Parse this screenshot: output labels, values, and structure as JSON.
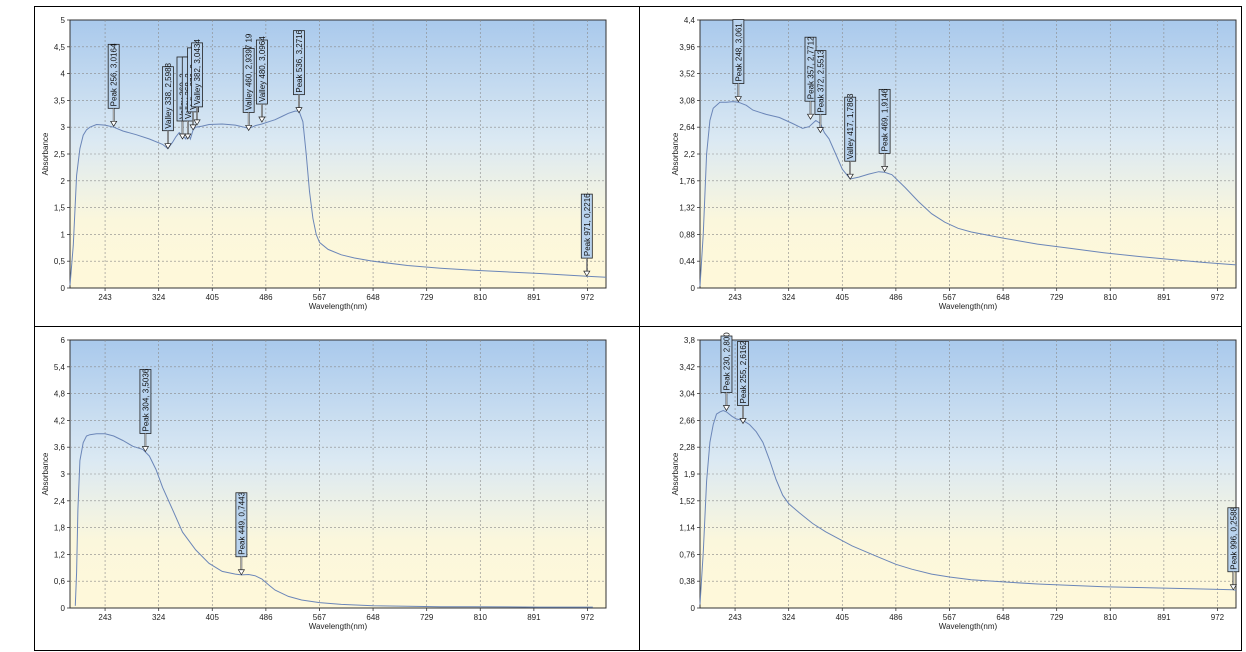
{
  "chart_data": [
    {
      "type": "line",
      "xlabel": "Wavelength(nm)",
      "ylabel": "Absorbance",
      "xticks": [
        "243",
        "324",
        "405",
        "486",
        "567",
        "648",
        "729",
        "810",
        "891",
        "972"
      ],
      "yticks": [
        "0",
        "0,5",
        "1",
        "1,5",
        "2",
        "2,5",
        "3",
        "3,5",
        "4",
        "4,5",
        "5"
      ],
      "xlim": [
        190,
        1000
      ],
      "ylim": [
        0,
        5
      ],
      "grid": true,
      "series": [
        {
          "x": [
            190,
            195,
            200,
            205,
            210,
            215,
            220,
            230,
            243,
            256,
            270,
            290,
            310,
            330,
            338,
            345,
            350,
            355,
            360,
            365,
            368,
            372,
            376,
            380,
            390,
            400,
            420,
            440,
            460,
            465,
            470,
            480,
            490,
            500,
            510,
            520,
            530,
            536,
            542,
            547,
            552,
            557,
            562,
            567,
            580,
            600,
            620,
            648,
            700,
            750,
            800,
            850,
            900,
            971,
            1000
          ],
          "y": [
            0.05,
            0.8,
            2.1,
            2.6,
            2.85,
            2.95,
            3.0,
            3.05,
            3.04,
            3.0,
            2.93,
            2.86,
            2.78,
            2.68,
            2.6,
            2.72,
            2.82,
            2.9,
            2.85,
            2.78,
            2.9,
            2.78,
            2.95,
            3.0,
            3.02,
            3.05,
            3.06,
            3.04,
            2.98,
            3.0,
            3.03,
            3.06,
            3.1,
            3.14,
            3.2,
            3.26,
            3.3,
            3.3,
            3.1,
            2.5,
            1.8,
            1.3,
            1.0,
            0.85,
            0.72,
            0.62,
            0.56,
            0.5,
            0.42,
            0.37,
            0.33,
            0.3,
            0.27,
            0.22,
            0.2
          ]
        }
      ],
      "annotations": [
        {
          "label": "Peak 256, 3,0164",
          "x": 256,
          "y": 3.0164
        },
        {
          "label": "Valley 338, 2,5988",
          "x": 338,
          "y": 2.5988
        },
        {
          "label": "Valley 360, 2,...",
          "x": 360,
          "y": 2.78
        },
        {
          "label": "Valley 368, 2,...",
          "x": 368,
          "y": 2.78
        },
        {
          "label": "Valley 376, 2,...",
          "x": 376,
          "y": 2.95
        },
        {
          "label": "Valley 382, 3,0434",
          "x": 382,
          "y": 3.0434
        },
        {
          "label": "Valley 460, 2,9397 19",
          "x": 460,
          "y": 2.9397
        },
        {
          "label": "Valley 480, 3,0964",
          "x": 480,
          "y": 3.0964
        },
        {
          "label": "Peak 536, 3,2716",
          "x": 536,
          "y": 3.2716
        },
        {
          "label": "Peak 971, 0,2216",
          "x": 971,
          "y": 0.2216
        }
      ]
    },
    {
      "type": "line",
      "xlabel": "Wavelength(nm)",
      "ylabel": "Absorbance",
      "xticks": [
        "243",
        "324",
        "405",
        "486",
        "567",
        "648",
        "729",
        "810",
        "891",
        "972"
      ],
      "yticks": [
        "0",
        "0,44",
        "0,88",
        "1,32",
        "1,76",
        "2,2",
        "2,64",
        "3,08",
        "3,52",
        "3,96",
        "4,4"
      ],
      "xlim": [
        190,
        1000
      ],
      "ylim": [
        0,
        4.4
      ],
      "grid": true,
      "series": [
        {
          "x": [
            190,
            195,
            200,
            205,
            210,
            220,
            230,
            240,
            248,
            260,
            270,
            290,
            310,
            330,
            345,
            355,
            365,
            372,
            378,
            385,
            395,
            405,
            417,
            430,
            445,
            460,
            469,
            480,
            500,
            520,
            540,
            560,
            580,
            600,
            648,
            700,
            750,
            800,
            850,
            900,
            950,
            1000
          ],
          "y": [
            0.03,
            0.9,
            2.2,
            2.75,
            2.95,
            3.05,
            3.05,
            3.06,
            3.05,
            3.0,
            2.92,
            2.85,
            2.8,
            2.7,
            2.62,
            2.65,
            2.75,
            2.7,
            2.55,
            2.45,
            2.2,
            1.95,
            1.79,
            1.82,
            1.87,
            1.91,
            1.9,
            1.86,
            1.65,
            1.42,
            1.22,
            1.08,
            0.98,
            0.92,
            0.82,
            0.72,
            0.65,
            0.58,
            0.52,
            0.47,
            0.42,
            0.38
          ]
        }
      ],
      "annotations": [
        {
          "label": "Peak 248, 3,061",
          "x": 248,
          "y": 3.061
        },
        {
          "label": "Peak 357, 2,7712",
          "x": 357,
          "y": 2.7712
        },
        {
          "label": "Peak 372, 2,5513",
          "x": 372,
          "y": 2.5513
        },
        {
          "label": "Valley 417, 1,7863",
          "x": 417,
          "y": 1.7863
        },
        {
          "label": "Peak 469, 1,9146",
          "x": 469,
          "y": 1.9146
        }
      ]
    },
    {
      "type": "line",
      "xlabel": "Wavelength(nm)",
      "ylabel": "Absorbance",
      "xticks": [
        "243",
        "324",
        "405",
        "486",
        "567",
        "648",
        "729",
        "810",
        "891",
        "972"
      ],
      "yticks": [
        "0",
        "0,6",
        "1,2",
        "1,8",
        "2,4",
        "3",
        "3,6",
        "4,2",
        "4,8",
        "5,4",
        "6"
      ],
      "xlim": [
        190,
        1000
      ],
      "ylim": [
        0,
        6
      ],
      "grid": true,
      "series": [
        {
          "x": [
            198,
            200,
            202,
            205,
            210,
            215,
            220,
            230,
            243,
            256,
            270,
            285,
            300,
            310,
            320,
            330,
            345,
            360,
            380,
            400,
            420,
            440,
            449,
            460,
            470,
            480,
            490,
            500,
            520,
            540,
            567,
            600,
            648,
            700,
            750,
            800,
            900,
            980
          ],
          "y": [
            0.05,
            0.8,
            2.2,
            3.3,
            3.7,
            3.85,
            3.88,
            3.9,
            3.9,
            3.85,
            3.75,
            3.62,
            3.55,
            3.4,
            3.1,
            2.7,
            2.2,
            1.7,
            1.3,
            1.0,
            0.82,
            0.76,
            0.74,
            0.75,
            0.72,
            0.65,
            0.52,
            0.4,
            0.26,
            0.18,
            0.12,
            0.08,
            0.05,
            0.04,
            0.03,
            0.03,
            0.02,
            0.02
          ]
        }
      ],
      "annotations": [
        {
          "label": "Peak 304, 3,5036",
          "x": 304,
          "y": 3.5036
        },
        {
          "label": "Peak 449, 0,7443",
          "x": 449,
          "y": 0.7443
        }
      ]
    },
    {
      "type": "line",
      "xlabel": "Wavelength(nm)",
      "ylabel": "Absorbance",
      "xticks": [
        "243",
        "324",
        "405",
        "486",
        "567",
        "648",
        "729",
        "810",
        "891",
        "972"
      ],
      "yticks": [
        "0",
        "0,38",
        "0,76",
        "1,14",
        "1,52",
        "1,9",
        "2,28",
        "2,66",
        "3,04",
        "3,42",
        "3,8"
      ],
      "xlim": [
        190,
        1000
      ],
      "ylim": [
        0,
        3.8
      ],
      "grid": true,
      "series": [
        {
          "x": [
            190,
            195,
            200,
            205,
            210,
            215,
            220,
            225,
            230,
            238,
            245,
            255,
            265,
            275,
            285,
            295,
            305,
            315,
            324,
            340,
            360,
            380,
            400,
            420,
            440,
            460,
            486,
            510,
            540,
            567,
            600,
            648,
            700,
            750,
            800,
            850,
            900,
            950,
            996,
            1000
          ],
          "y": [
            0.05,
            0.8,
            1.8,
            2.35,
            2.6,
            2.75,
            2.78,
            2.8,
            2.78,
            2.72,
            2.68,
            2.66,
            2.6,
            2.5,
            2.35,
            2.1,
            1.82,
            1.6,
            1.48,
            1.35,
            1.2,
            1.08,
            0.98,
            0.88,
            0.8,
            0.72,
            0.62,
            0.55,
            0.48,
            0.44,
            0.4,
            0.37,
            0.34,
            0.32,
            0.3,
            0.29,
            0.28,
            0.27,
            0.26,
            0.25
          ]
        }
      ],
      "annotations": [
        {
          "label": "Peak 230, 2,800",
          "x": 230,
          "y": 2.8
        },
        {
          "label": "Peak 255, 2,6162",
          "x": 255,
          "y": 2.6162
        },
        {
          "label": "Peak 996, 0,2588",
          "x": 996,
          "y": 0.2588
        }
      ]
    }
  ]
}
